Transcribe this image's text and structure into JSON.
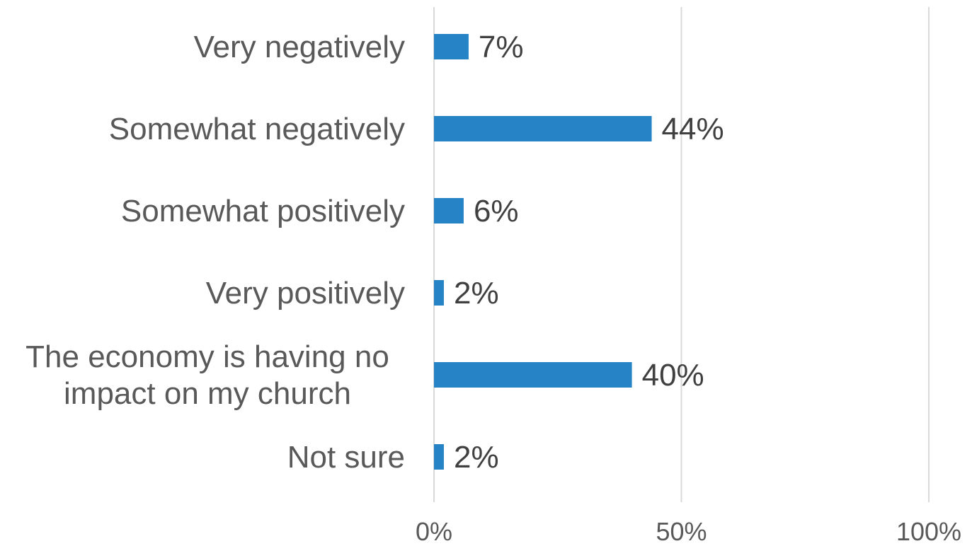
{
  "chart_data": {
    "type": "bar",
    "orientation": "horizontal",
    "categories": [
      [
        "Very negatively"
      ],
      [
        "Somewhat negatively"
      ],
      [
        "Somewhat positively"
      ],
      [
        "Very positively"
      ],
      [
        "The economy is having no",
        "impact on my church"
      ],
      [
        "Not sure"
      ]
    ],
    "values": [
      7,
      44,
      6,
      2,
      40,
      2
    ],
    "data_labels": [
      "7%",
      "44%",
      "6%",
      "2%",
      "40%",
      "2%"
    ],
    "x_ticks": [
      "0%",
      "50%",
      "100%"
    ],
    "x_tick_values": [
      0,
      50,
      100
    ],
    "xlim": [
      0,
      100
    ],
    "grid": true,
    "bar_color": "#2683c6",
    "title": "",
    "xlabel": "",
    "ylabel": ""
  }
}
